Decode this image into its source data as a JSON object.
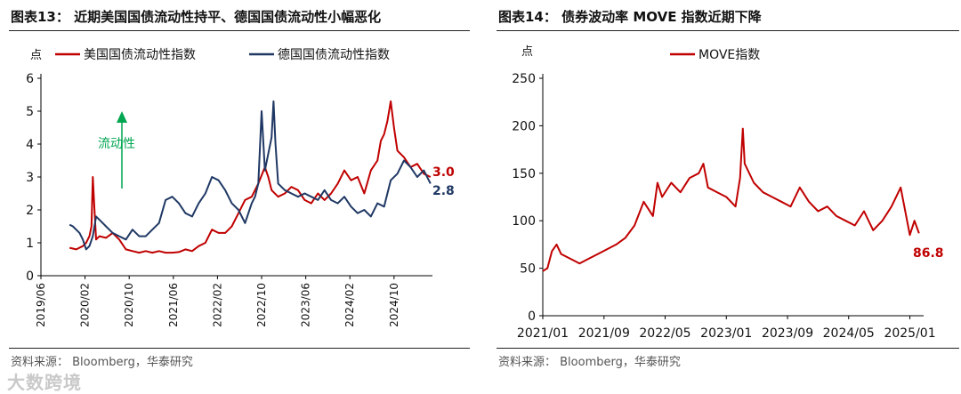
{
  "left": {
    "title": "图表13：  近期美国国债流动性持平、德国国债流动性小幅恶化",
    "source": "资料来源：   Bloomberg，华泰研究",
    "unit": "点",
    "arrow_label": "流动性",
    "end_labels": {
      "us": "3.0",
      "de": "2.8"
    }
  },
  "right": {
    "title": "图表14：  债券波动率 MOVE 指数近期下降",
    "source": "资料来源：   Bloomberg，华泰研究",
    "unit": "点",
    "end_label": "86.8"
  },
  "watermark": "大数跨境",
  "colors": {
    "red": "#c00000",
    "navy": "#1f3864",
    "green": "#00a650",
    "axis": "#000000"
  },
  "chart_data": [
    {
      "type": "line",
      "title": "近期美国国债流动性持平、德国国债流动性小幅恶化",
      "ylabel": "点",
      "ylim": [
        0,
        6
      ],
      "yticks": [
        0,
        1,
        2,
        3,
        4,
        5,
        6
      ],
      "xlim": [
        2019.417,
        2025.33
      ],
      "xticks": [
        {
          "label": "2019/06",
          "x": 2019.417
        },
        {
          "label": "2020/02",
          "x": 2020.083
        },
        {
          "label": "2020/10",
          "x": 2020.75
        },
        {
          "label": "2021/06",
          "x": 2021.417
        },
        {
          "label": "2022/02",
          "x": 2022.083
        },
        {
          "label": "2022/10",
          "x": 2022.75
        },
        {
          "label": "2023/06",
          "x": 2023.417
        },
        {
          "label": "2024/02",
          "x": 2024.083
        },
        {
          "label": "2024/10",
          "x": 2024.75
        }
      ],
      "legend": "top",
      "series": [
        {
          "name": "美国国债流动性指数",
          "color": "#c00000",
          "x": [
            2019.85,
            2019.95,
            2020.05,
            2020.1,
            2020.15,
            2020.18,
            2020.2,
            2020.22,
            2020.25,
            2020.3,
            2020.4,
            2020.5,
            2020.6,
            2020.7,
            2020.8,
            2020.9,
            2021.0,
            2021.1,
            2021.2,
            2021.3,
            2021.4,
            2021.5,
            2021.6,
            2021.7,
            2021.8,
            2021.9,
            2022.0,
            2022.1,
            2022.2,
            2022.3,
            2022.4,
            2022.5,
            2022.6,
            2022.7,
            2022.8,
            2022.85,
            2022.9,
            2023.0,
            2023.1,
            2023.2,
            2023.3,
            2023.4,
            2023.5,
            2023.6,
            2023.7,
            2023.8,
            2023.9,
            2024.0,
            2024.1,
            2024.2,
            2024.3,
            2024.4,
            2024.5,
            2024.55,
            2024.6,
            2024.65,
            2024.7,
            2024.75,
            2024.8,
            2024.9,
            2025.0,
            2025.1,
            2025.2,
            2025.3
          ],
          "y": [
            0.85,
            0.8,
            0.9,
            1.0,
            1.2,
            1.5,
            3.0,
            2.2,
            1.1,
            1.2,
            1.15,
            1.3,
            1.1,
            0.8,
            0.75,
            0.7,
            0.75,
            0.7,
            0.75,
            0.7,
            0.7,
            0.72,
            0.8,
            0.75,
            0.9,
            1.0,
            1.4,
            1.3,
            1.3,
            1.5,
            1.9,
            2.3,
            2.4,
            2.8,
            3.3,
            3.0,
            2.6,
            2.4,
            2.5,
            2.7,
            2.6,
            2.3,
            2.2,
            2.5,
            2.3,
            2.5,
            2.8,
            3.2,
            2.9,
            3.0,
            2.5,
            3.2,
            3.5,
            4.1,
            4.3,
            4.7,
            5.3,
            4.5,
            3.8,
            3.6,
            3.3,
            3.4,
            3.1,
            3.0
          ]
        },
        {
          "name": "德国国债流动性指数",
          "color": "#1f3864",
          "x": [
            2019.85,
            2019.9,
            2020.0,
            2020.05,
            2020.1,
            2020.15,
            2020.2,
            2020.25,
            2020.3,
            2020.4,
            2020.5,
            2020.6,
            2020.7,
            2020.8,
            2020.9,
            2021.0,
            2021.1,
            2021.2,
            2021.3,
            2021.4,
            2021.5,
            2021.6,
            2021.7,
            2021.8,
            2021.9,
            2022.0,
            2022.1,
            2022.2,
            2022.3,
            2022.4,
            2022.5,
            2022.6,
            2022.65,
            2022.7,
            2022.75,
            2022.8,
            2022.9,
            2022.93,
            2022.96,
            2023.0,
            2023.1,
            2023.2,
            2023.3,
            2023.4,
            2023.5,
            2023.6,
            2023.7,
            2023.8,
            2023.9,
            2024.0,
            2024.1,
            2024.2,
            2024.3,
            2024.4,
            2024.5,
            2024.6,
            2024.7,
            2024.8,
            2024.9,
            2025.0,
            2025.1,
            2025.2,
            2025.3
          ],
          "y": [
            1.55,
            1.5,
            1.3,
            1.1,
            0.8,
            0.9,
            1.2,
            1.8,
            1.7,
            1.5,
            1.3,
            1.2,
            1.1,
            1.4,
            1.2,
            1.2,
            1.4,
            1.6,
            2.3,
            2.4,
            2.2,
            1.9,
            1.8,
            2.2,
            2.5,
            3.0,
            2.9,
            2.6,
            2.2,
            2.0,
            1.6,
            2.2,
            2.4,
            2.8,
            5.0,
            3.2,
            4.2,
            5.3,
            4.0,
            2.8,
            2.6,
            2.5,
            2.4,
            2.5,
            2.4,
            2.3,
            2.6,
            2.3,
            2.2,
            2.4,
            2.1,
            1.9,
            2.0,
            1.8,
            2.2,
            2.1,
            2.9,
            3.1,
            3.5,
            3.3,
            3.0,
            3.2,
            2.8
          ]
        }
      ]
    },
    {
      "type": "line",
      "title": "债券波动率 MOVE 指数近期下降",
      "ylabel": "点",
      "ylim": [
        0,
        250
      ],
      "yticks": [
        0,
        50,
        100,
        150,
        200,
        250
      ],
      "xlim": [
        2021.0,
        2025.15
      ],
      "xticks": [
        {
          "label": "2021/01",
          "x": 2021.0
        },
        {
          "label": "2021/09",
          "x": 2021.667
        },
        {
          "label": "2022/05",
          "x": 2022.333
        },
        {
          "label": "2023/01",
          "x": 2023.0
        },
        {
          "label": "2023/09",
          "x": 2023.667
        },
        {
          "label": "2024/05",
          "x": 2024.333
        },
        {
          "label": "2025/01",
          "x": 2025.0
        }
      ],
      "legend": "top",
      "series": [
        {
          "name": "MOVE指数",
          "color": "#c00000",
          "x": [
            2021.0,
            2021.05,
            2021.1,
            2021.15,
            2021.2,
            2021.3,
            2021.4,
            2021.5,
            2021.6,
            2021.7,
            2021.8,
            2021.9,
            2022.0,
            2022.1,
            2022.2,
            2022.25,
            2022.3,
            2022.4,
            2022.5,
            2022.6,
            2022.7,
            2022.75,
            2022.8,
            2022.9,
            2023.0,
            2023.1,
            2023.15,
            2023.18,
            2023.2,
            2023.3,
            2023.4,
            2023.5,
            2023.6,
            2023.7,
            2023.8,
            2023.9,
            2024.0,
            2024.1,
            2024.2,
            2024.3,
            2024.4,
            2024.5,
            2024.6,
            2024.7,
            2024.8,
            2024.9,
            2025.0,
            2025.05,
            2025.1
          ],
          "y": [
            47,
            50,
            68,
            75,
            65,
            60,
            55,
            60,
            65,
            70,
            75,
            82,
            95,
            120,
            105,
            140,
            125,
            140,
            130,
            145,
            150,
            160,
            135,
            130,
            125,
            115,
            145,
            197,
            160,
            140,
            130,
            125,
            120,
            115,
            135,
            120,
            110,
            115,
            105,
            100,
            95,
            110,
            90,
            100,
            115,
            135,
            85,
            100,
            86.8
          ]
        }
      ]
    }
  ]
}
